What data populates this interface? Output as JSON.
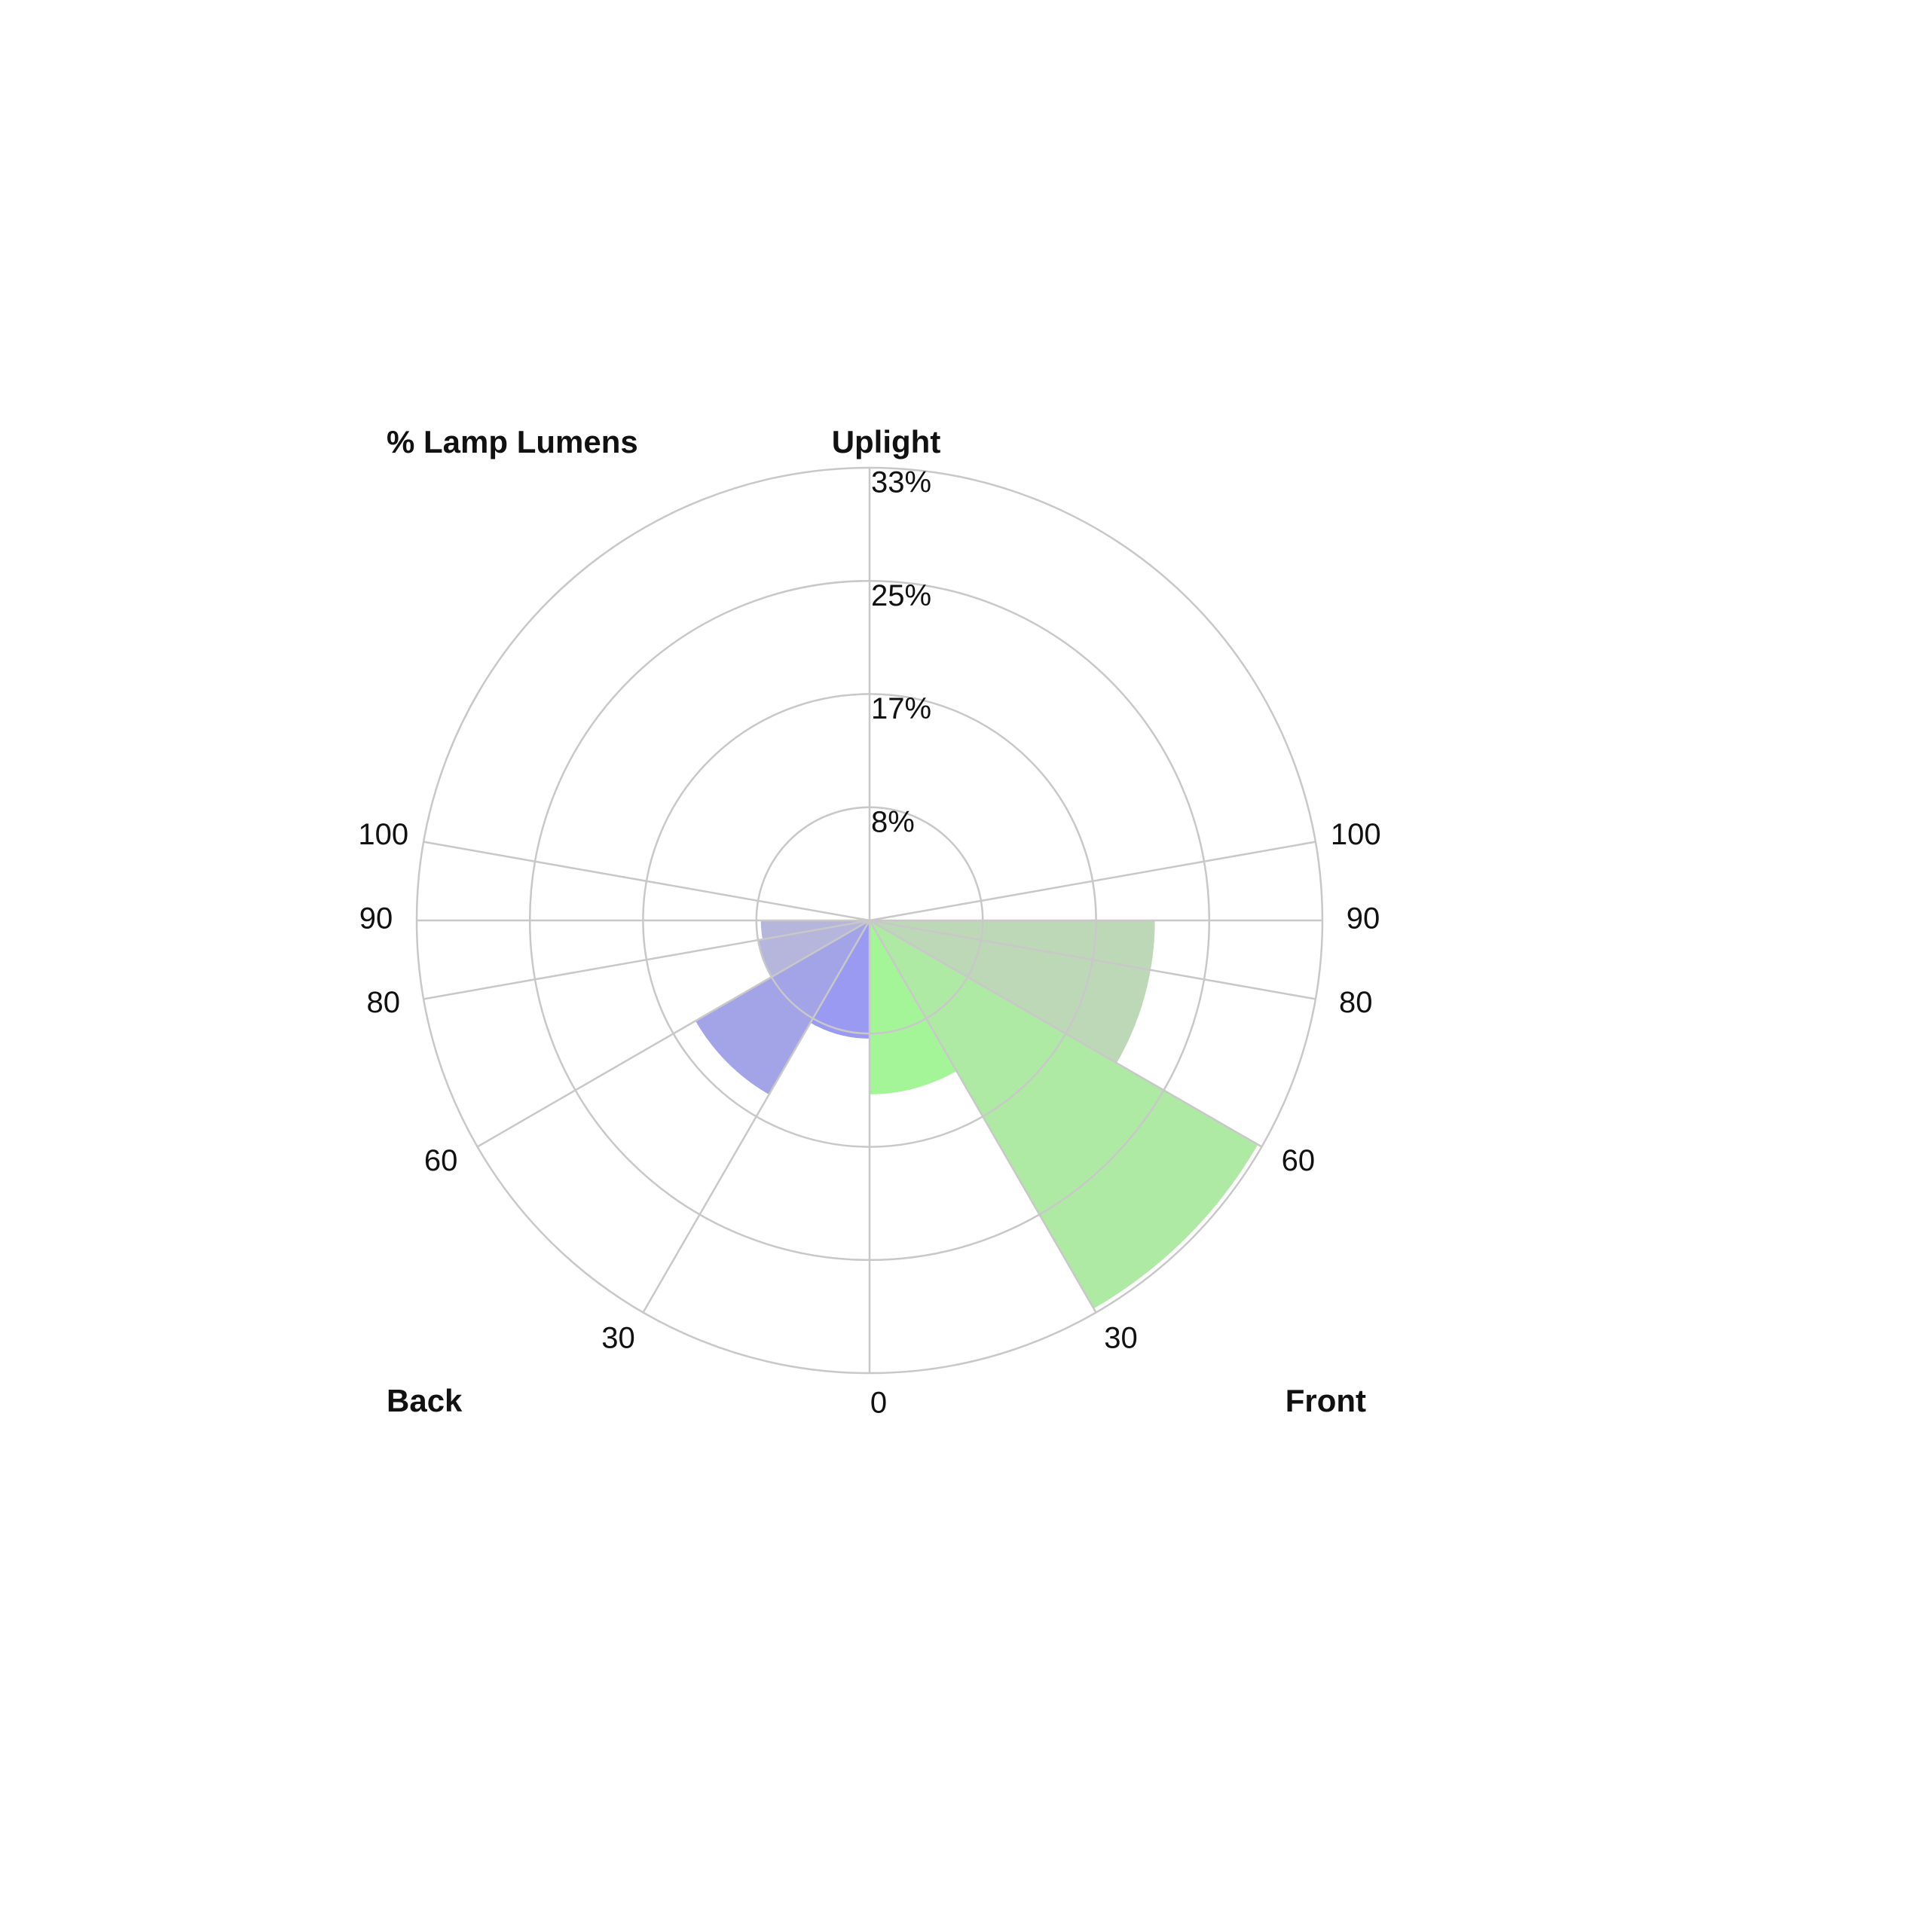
{
  "chart_data": {
    "type": "polar_rose",
    "title": "% Lamp Lumens",
    "uplight_label": "Uplight",
    "theta_bins": [
      0,
      30,
      60,
      80,
      90
    ],
    "thetalim": [
      0,
      180
    ],
    "thetaticks": [
      0,
      30,
      60,
      80,
      90,
      100
    ],
    "rlim": [
      0,
      33.33
    ],
    "rticks": [
      {
        "value": 8.33,
        "label": "8%"
      },
      {
        "value": 16.67,
        "label": "17%"
      },
      {
        "value": 25,
        "label": "25%"
      },
      {
        "value": 33.33,
        "label": "33%"
      }
    ],
    "grid": true,
    "series": [
      {
        "name": "Front",
        "side": "right",
        "values": [
          12.8,
          33,
          21,
          21
        ],
        "colors": [
          "#a3f598",
          "#aeeaa4",
          "#bcd8b7",
          "#bcd8b7"
        ]
      },
      {
        "name": "Back",
        "side": "left",
        "values": [
          8.7,
          14.8,
          8.3,
          8
        ],
        "colors": [
          "#9a9af2",
          "#a3a3e8",
          "#b6b6dd",
          "#b6b6dd"
        ]
      }
    ]
  }
}
